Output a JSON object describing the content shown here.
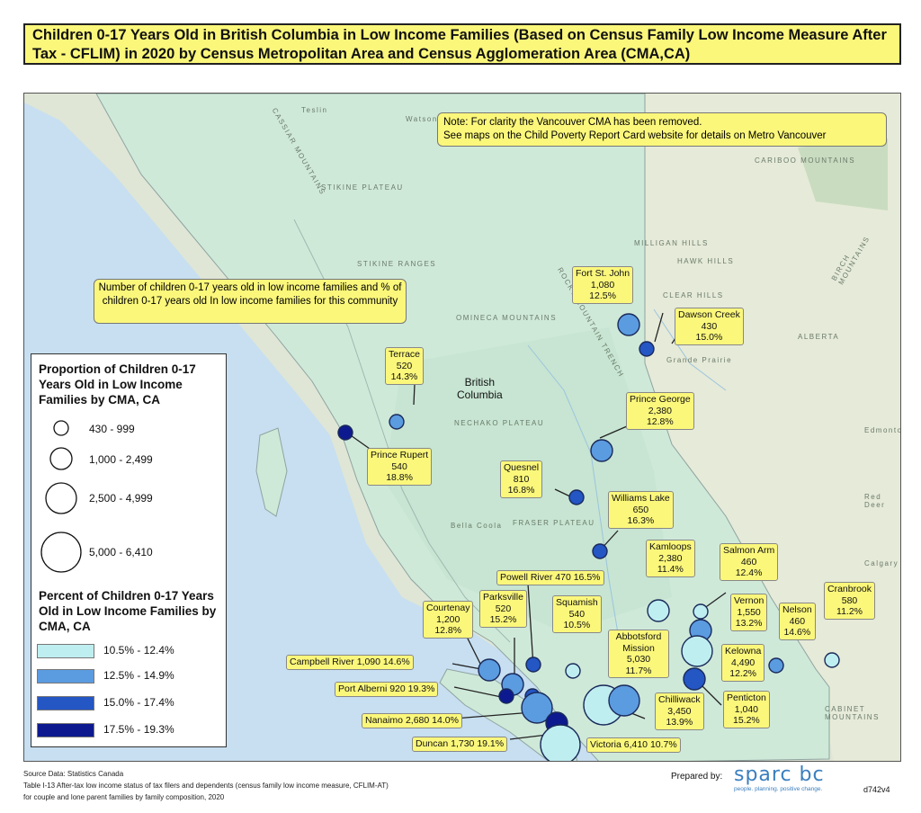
{
  "title": "Children 0-17 Years Old in British Columbia in Low Income Families (Based on Census Family Low Income Measure After Tax - CFLIM) in 2020 by Census Metropolitan Area and Census Agglomeration Area (CMA,CA)",
  "note": {
    "line1": "Note: For clarity the Vancouver CMA has been removed.",
    "line2": "See maps on the Child Poverty Report Card website for details on Metro Vancouver"
  },
  "callout": "Number of children 0-17 years old in low income families and % of children 0-17 years old In low income families for this community",
  "province_label": {
    "line1": "British",
    "line2": "Columbia"
  },
  "colors": {
    "class1": "#bfeef0",
    "class2": "#5b9be0",
    "class3": "#2456c4",
    "class4": "#0d1a8f",
    "label_bg": "#fbf77b"
  },
  "communities": [
    {
      "name": "Fort St. John",
      "count": "1,080",
      "pct": "12.5%",
      "class": 2
    },
    {
      "name": "Dawson Creek",
      "count": "430",
      "pct": "15.0%",
      "class": 3
    },
    {
      "name": "Terrace",
      "count": "520",
      "pct": "14.3%",
      "class": 2
    },
    {
      "name": "Prince George",
      "count": "2,380",
      "pct": "12.8%",
      "class": 2
    },
    {
      "name": "Prince Rupert",
      "count": "540",
      "pct": "18.8%",
      "class": 4
    },
    {
      "name": "Quesnel",
      "count": "810",
      "pct": "16.8%",
      "class": 3
    },
    {
      "name": "Williams  Lake",
      "count": "650",
      "pct": "16.3%",
      "class": 3
    },
    {
      "name": "Kamloops",
      "count": "2,380",
      "pct": "11.4%",
      "class": 1
    },
    {
      "name": "Salmon Arm",
      "count": "460",
      "pct": "12.4%",
      "class": 1
    },
    {
      "name": "Powell River",
      "count": "470",
      "pct": "16.5%",
      "class": 3
    },
    {
      "name": "Courtenay",
      "count": "1,200",
      "pct": "12.8%",
      "class": 2
    },
    {
      "name": "Parksville",
      "count": "520",
      "pct": "15.2%",
      "class": 3
    },
    {
      "name": "Squamish",
      "count": "540",
      "pct": "10.5%",
      "class": 1
    },
    {
      "name": "Vernon",
      "count": "1,550",
      "pct": "13.2%",
      "class": 2
    },
    {
      "name": "Nelson",
      "count": "460",
      "pct": "14.6%",
      "class": 2
    },
    {
      "name": "Cranbrook",
      "count": "580",
      "pct": "11.2%",
      "class": 1
    },
    {
      "name": "Abbotsford Mission",
      "count": "5,030",
      "pct": "11.7%",
      "class": 1
    },
    {
      "name": "Kelowna",
      "count": "4,490",
      "pct": "12.2%",
      "class": 1
    },
    {
      "name": "Campbell River",
      "count": "1,090",
      "pct": "14.6%",
      "class": 2
    },
    {
      "name": "Port Alberni",
      "count": "920",
      "pct": "19.3%",
      "class": 4
    },
    {
      "name": "Chilliwack",
      "count": "3,450",
      "pct": "13.9%",
      "class": 2
    },
    {
      "name": "Penticton",
      "count": "1,040",
      "pct": "15.2%",
      "class": 3
    },
    {
      "name": "Nanaimo",
      "count": "2,680",
      "pct": "14.0%",
      "class": 2
    },
    {
      "name": "Duncan",
      "count": "1,730",
      "pct": "19.1%",
      "class": 4
    },
    {
      "name": "Victoria",
      "count": "6,410",
      "pct": "10.7%",
      "class": 1
    }
  ],
  "legend": {
    "size_title": "Proportion of Children 0-17 Years Old in Low Income Families by CMA, CA",
    "size_classes": [
      "430 - 999",
      "1,000 - 2,499",
      "2,500 - 4,999",
      "5,000 - 6,410"
    ],
    "color_title": "Percent of Children 0-17 Years Old in Low Income Families by CMA, CA",
    "color_classes": [
      "10.5% - 12.4%",
      "12.5% - 14.9%",
      "15.0% - 17.4%",
      "17.5% - 19.3%"
    ]
  },
  "base_map_labels": {
    "teslin": "Teslin",
    "watson_lake": "Watson Lake",
    "cassiar": "CASSIAR MOUNTAINS",
    "stikine": "STIKINE PLATEAU",
    "stikine_ranges": "STIKINE RANGES",
    "omineca": "OMINECA MOUNTAINS",
    "nechako": "NECHAKO PLATEAU",
    "fraser": "FRASER PLATEAU",
    "rocky": "ROCKY MOUNTAIN TRENCH",
    "cariboo": "CARIBOO MOUNTAINS",
    "milligan": "MILLIGAN HILLS",
    "hawk": "HAWK HILLS",
    "clear": "CLEAR HILLS",
    "birch": "BIRCH MOUNTAINS",
    "alberta": "ALBERTA",
    "edmonton": "Edmonton",
    "red_deer": "Red Deer",
    "calgary": "Calgary",
    "bella_coola": "Bella Coola",
    "grande_prairie": "Grande Prairie",
    "cabinet": "CABINET MOUNTAINS"
  },
  "footer": {
    "source": "Source Data: Statistics Canada",
    "table": "Table I-13 After-tax low income status of tax filers and dependents (census family low income measure, CFLIM-AT)",
    "families": " for couple and lone parent families by family composition, 2020",
    "prepared": "Prepared by:",
    "logo": "sparc bc",
    "tagline": "people. planning. positive change.",
    "code": "d742v4"
  }
}
